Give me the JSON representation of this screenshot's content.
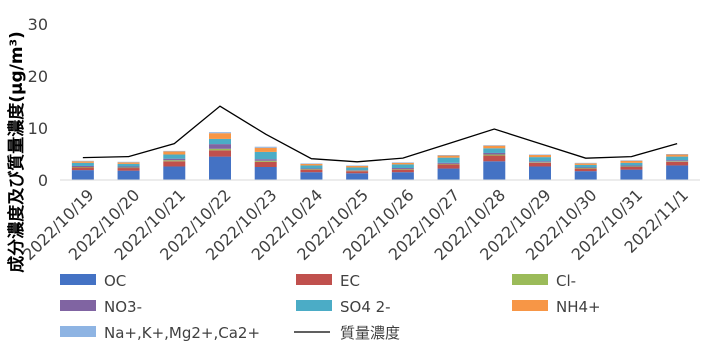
{
  "chart_data": {
    "type": "bar",
    "stacked": true,
    "title": "",
    "xlabel": "",
    "ylabel": "成分濃度及び質量濃度(μg/m³)",
    "ylim": [
      0,
      30
    ],
    "yticks": [
      0,
      10,
      20,
      30
    ],
    "grid": false,
    "legend_position": "bottom",
    "categories": [
      "2022/10/19",
      "2022/10/20",
      "2022/10/21",
      "2022/10/22",
      "2022/10/23",
      "2022/10/24",
      "2022/10/25",
      "2022/10/26",
      "2022/10/27",
      "2022/10/28",
      "2022/10/29",
      "2022/10/30",
      "2022/10/31",
      "2022/11/1"
    ],
    "series": [
      {
        "name": "OC",
        "color": "#4472C4",
        "values": [
          1.9,
          1.8,
          2.6,
          4.5,
          2.5,
          1.5,
          1.3,
          1.5,
          2.2,
          3.6,
          2.6,
          1.7,
          2.0,
          2.8
        ]
      },
      {
        "name": "EC",
        "color": "#C0504D",
        "values": [
          0.5,
          0.5,
          1.0,
          1.2,
          1.0,
          0.5,
          0.4,
          0.5,
          0.8,
          1.1,
          0.7,
          0.5,
          0.5,
          0.7
        ]
      },
      {
        "name": "Cl-",
        "color": "#9BBB59",
        "values": [
          0.1,
          0.1,
          0.2,
          0.3,
          0.2,
          0.1,
          0.1,
          0.1,
          0.1,
          0.2,
          0.1,
          0.1,
          0.1,
          0.1
        ]
      },
      {
        "name": "NO3-",
        "color": "#8064A2",
        "values": [
          0.2,
          0.2,
          0.3,
          0.9,
          0.3,
          0.1,
          0.1,
          0.2,
          0.2,
          0.3,
          0.2,
          0.1,
          0.2,
          0.2
        ]
      },
      {
        "name": "SO4 2-",
        "color": "#4BACC6",
        "values": [
          0.6,
          0.5,
          0.8,
          1.0,
          1.4,
          0.6,
          0.5,
          0.7,
          1.0,
          0.9,
          0.8,
          0.5,
          0.5,
          0.7
        ]
      },
      {
        "name": "NH4+",
        "color": "#F79646",
        "values": [
          0.3,
          0.3,
          0.6,
          1.1,
          0.8,
          0.3,
          0.3,
          0.3,
          0.4,
          0.5,
          0.4,
          0.3,
          0.4,
          0.4
        ]
      },
      {
        "name": "Na+,K+,Mg2+,Ca2+",
        "color": "#8EB4E3",
        "values": [
          0.1,
          0.1,
          0.1,
          0.2,
          0.2,
          0.1,
          0.1,
          0.1,
          0.1,
          0.1,
          0.1,
          0.1,
          0.1,
          0.1
        ]
      }
    ],
    "line_series": {
      "name": "質量濃度",
      "color": "#000000",
      "values": [
        4.3,
        4.5,
        7.0,
        14.2,
        8.8,
        4.1,
        3.5,
        4.2,
        7.0,
        9.8,
        7.0,
        4.2,
        4.5,
        7.0
      ]
    }
  }
}
